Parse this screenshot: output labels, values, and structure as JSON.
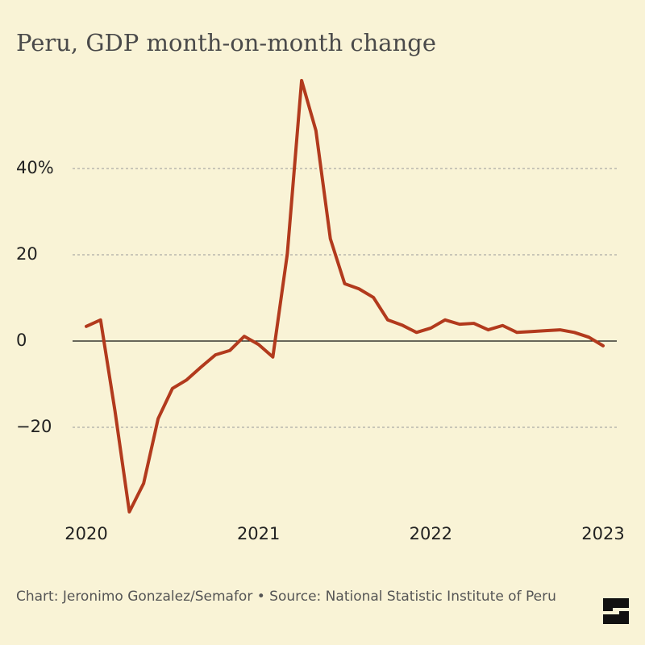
{
  "chart_data": {
    "type": "line",
    "title": "Peru, GDP month-on-month change",
    "source": "Chart: Jeronimo Gonzalez/Semafor • Source: National Statistic Institute of Peru",
    "x": [
      2020,
      2020.083,
      2020.167,
      2020.25,
      2020.333,
      2020.417,
      2020.5,
      2020.583,
      2020.667,
      2020.75,
      2020.833,
      2020.917,
      2021,
      2021.083,
      2021.167,
      2021.25,
      2021.333,
      2021.417,
      2021.5,
      2021.583,
      2021.667,
      2021.75,
      2021.833,
      2021.917,
      2022,
      2022.083,
      2022.167,
      2022.25,
      2022.333,
      2022.417,
      2022.5,
      2022.583,
      2022.667,
      2022.75,
      2022.833,
      2022.917,
      2023
    ],
    "series": [
      {
        "name": "GDP month-on-month change",
        "color": "#b23a1d",
        "values": [
          3.4,
          4.9,
          -16.3,
          -39.6,
          -33,
          -18,
          -11,
          -9,
          -6,
          -3.2,
          -2.2,
          1.1,
          -0.8,
          -3.7,
          20.2,
          60.4,
          48.8,
          23.7,
          13.3,
          12.1,
          10.1,
          4.9,
          3.7,
          2.0,
          3.0,
          4.9,
          3.9,
          4.1,
          2.6,
          3.6,
          2.0,
          2.2,
          2.4,
          2.6,
          2.0,
          0.9,
          -1.1
        ]
      }
    ],
    "xlim": [
      2020,
      2023
    ],
    "xticks": [
      2020,
      2021,
      2022,
      2023
    ],
    "ylim": [
      -40,
      60
    ],
    "yticks": [
      {
        "value": -20,
        "label": "−20"
      },
      0,
      20,
      {
        "value": 40,
        "label": "40%"
      }
    ],
    "grid": true
  }
}
